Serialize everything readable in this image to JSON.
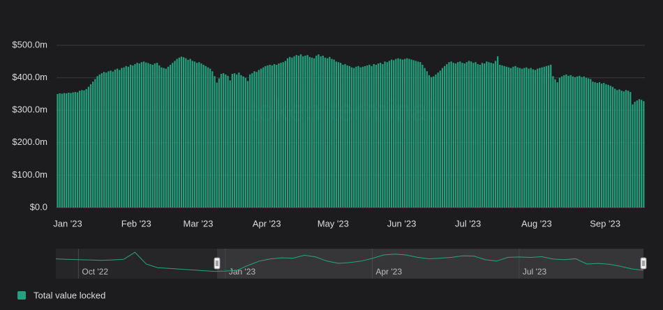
{
  "chart_data": [
    {
      "type": "bar",
      "watermark": "token terminal",
      "categories": [
        "Jan '23",
        null,
        null,
        null,
        null,
        null,
        null,
        null,
        null,
        null,
        null,
        null,
        null,
        null,
        null,
        null,
        null,
        null,
        null,
        null,
        null,
        null,
        null,
        null,
        null,
        null,
        null,
        null,
        null,
        null,
        null,
        "Feb '23",
        null,
        null,
        null,
        null,
        null,
        null,
        null,
        null,
        null,
        null,
        null,
        null,
        null,
        null,
        null,
        null,
        null,
        null,
        null,
        null,
        null,
        null,
        null,
        null,
        null,
        null,
        null,
        "Mar '23",
        null,
        null,
        null,
        null,
        null,
        null,
        null,
        null,
        null,
        null,
        null,
        null,
        null,
        null,
        null,
        null,
        null,
        null,
        null,
        null,
        null,
        null,
        null,
        null,
        null,
        null,
        null,
        null,
        null,
        null,
        "Apr '23",
        null,
        null,
        null,
        null,
        null,
        null,
        null,
        null,
        null,
        null,
        null,
        null,
        null,
        null,
        null,
        null,
        null,
        null,
        null,
        null,
        null,
        null,
        null,
        null,
        null,
        null,
        null,
        null,
        null,
        "May '23",
        null,
        null,
        null,
        null,
        null,
        null,
        null,
        null,
        null,
        null,
        null,
        null,
        null,
        null,
        null,
        null,
        null,
        null,
        null,
        null,
        null,
        null,
        null,
        null,
        null,
        null,
        null,
        null,
        null,
        null,
        "Jun '23",
        null,
        null,
        null,
        null,
        null,
        null,
        null,
        null,
        null,
        null,
        null,
        null,
        null,
        null,
        null,
        null,
        null,
        null,
        null,
        null,
        null,
        null,
        null,
        null,
        null,
        null,
        null,
        null,
        null,
        "Jul '23",
        null,
        null,
        null,
        null,
        null,
        null,
        null,
        null,
        null,
        null,
        null,
        null,
        null,
        null,
        null,
        null,
        null,
        null,
        null,
        null,
        null,
        null,
        null,
        null,
        null,
        null,
        null,
        null,
        null,
        null,
        "Aug '23",
        null,
        null,
        null,
        null,
        null,
        null,
        null,
        null,
        null,
        null,
        null,
        null,
        null,
        null,
        null,
        null,
        null,
        null,
        null,
        null,
        null,
        null,
        null,
        null,
        null,
        null,
        null,
        null,
        null,
        null,
        "Sep '23",
        null,
        null,
        null,
        null,
        null,
        null,
        null,
        null,
        null,
        null,
        null,
        null,
        null,
        null,
        null,
        null,
        null,
        null,
        null,
        null,
        null,
        null
      ],
      "series": [
        {
          "name": "Total value locked",
          "color": "#23a07c",
          "values": [
            350,
            352,
            351,
            353,
            352,
            354,
            353,
            355,
            356,
            355,
            360,
            362,
            361,
            365,
            372,
            380,
            388,
            396,
            405,
            410,
            414,
            418,
            416,
            420,
            422,
            419,
            425,
            428,
            424,
            430,
            432,
            436,
            434,
            440,
            438,
            442,
            446,
            444,
            448,
            450,
            447,
            445,
            442,
            440,
            444,
            446,
            438,
            432,
            430,
            428,
            434,
            440,
            446,
            452,
            458,
            462,
            465,
            463,
            460,
            455,
            458,
            452,
            450,
            446,
            448,
            444,
            440,
            436,
            432,
            428,
            420,
            405,
            385,
            398,
            412,
            414,
            410,
            406,
            392,
            412,
            414,
            410,
            416,
            408,
            404,
            400,
            390,
            410,
            414,
            420,
            418,
            424,
            428,
            432,
            436,
            438,
            440,
            438,
            442,
            440,
            444,
            446,
            448,
            452,
            460,
            464,
            462,
            466,
            470,
            468,
            472,
            466,
            468,
            470,
            464,
            462,
            460,
            468,
            472,
            466,
            468,
            462,
            460,
            464,
            458,
            456,
            450,
            448,
            446,
            440,
            442,
            438,
            436,
            432,
            430,
            434,
            436,
            432,
            434,
            436,
            438,
            440,
            436,
            442,
            440,
            444,
            446,
            442,
            450,
            448,
            452,
            456,
            454,
            458,
            460,
            458,
            456,
            458,
            460,
            458,
            456,
            454,
            452,
            450,
            448,
            440,
            430,
            420,
            408,
            402,
            404,
            410,
            416,
            422,
            430,
            436,
            442,
            448,
            450,
            446,
            444,
            448,
            450,
            446,
            444,
            448,
            452,
            450,
            446,
            448,
            442,
            440,
            446,
            444,
            450,
            448,
            446,
            444,
            452,
            466,
            440,
            438,
            436,
            434,
            432,
            430,
            434,
            436,
            432,
            430,
            428,
            430,
            432,
            428,
            430,
            426,
            424,
            428,
            430,
            432,
            434,
            436,
            438,
            440,
            405,
            395,
            386,
            400,
            404,
            408,
            410,
            406,
            408,
            404,
            402,
            404,
            406,
            402,
            404,
            400,
            398,
            396,
            388,
            386,
            384,
            386,
            382,
            384,
            380,
            378,
            375,
            372,
            366,
            362,
            364,
            360,
            358,
            362,
            360,
            356,
            318,
            326,
            330,
            334,
            332,
            328
          ]
        }
      ],
      "ylim": [
        0,
        500
      ],
      "yticks": [
        {
          "value": 0,
          "label": "$0.0"
        },
        {
          "value": 100,
          "label": "$100.0m"
        },
        {
          "value": 200,
          "label": "$200.0m"
        },
        {
          "value": 300,
          "label": "$300.0m"
        },
        {
          "value": 400,
          "label": "$400.0m"
        },
        {
          "value": 500,
          "label": "$500.0m"
        }
      ],
      "grid": true
    },
    {
      "type": "line",
      "categories": [
        null,
        null,
        "Oct '22",
        null,
        null,
        null,
        null,
        null,
        null,
        null,
        null,
        null,
        null,
        null,
        null,
        "Jan '23",
        null,
        null,
        null,
        null,
        null,
        null,
        null,
        null,
        null,
        null,
        null,
        null,
        "Apr '23",
        null,
        null,
        null,
        null,
        null,
        null,
        null,
        null,
        null,
        null,
        null,
        null,
        "Jul '23",
        null,
        null,
        null,
        null,
        null,
        null,
        null,
        null,
        null,
        null,
        null
      ],
      "color": "#2aa57f",
      "values": [
        435,
        432,
        430,
        428,
        425,
        428,
        432,
        480,
        400,
        375,
        370,
        365,
        360,
        355,
        350,
        352,
        356,
        390,
        420,
        435,
        442,
        440,
        460,
        448,
        420,
        405,
        410,
        420,
        438,
        462,
        468,
        462,
        446,
        436,
        440,
        445,
        456,
        454,
        430,
        420,
        446,
        448,
        445,
        450,
        434,
        430,
        436,
        400,
        404,
        398,
        384,
        366,
        358
      ],
      "ylim": [
        300,
        500
      ]
    }
  ]
}
